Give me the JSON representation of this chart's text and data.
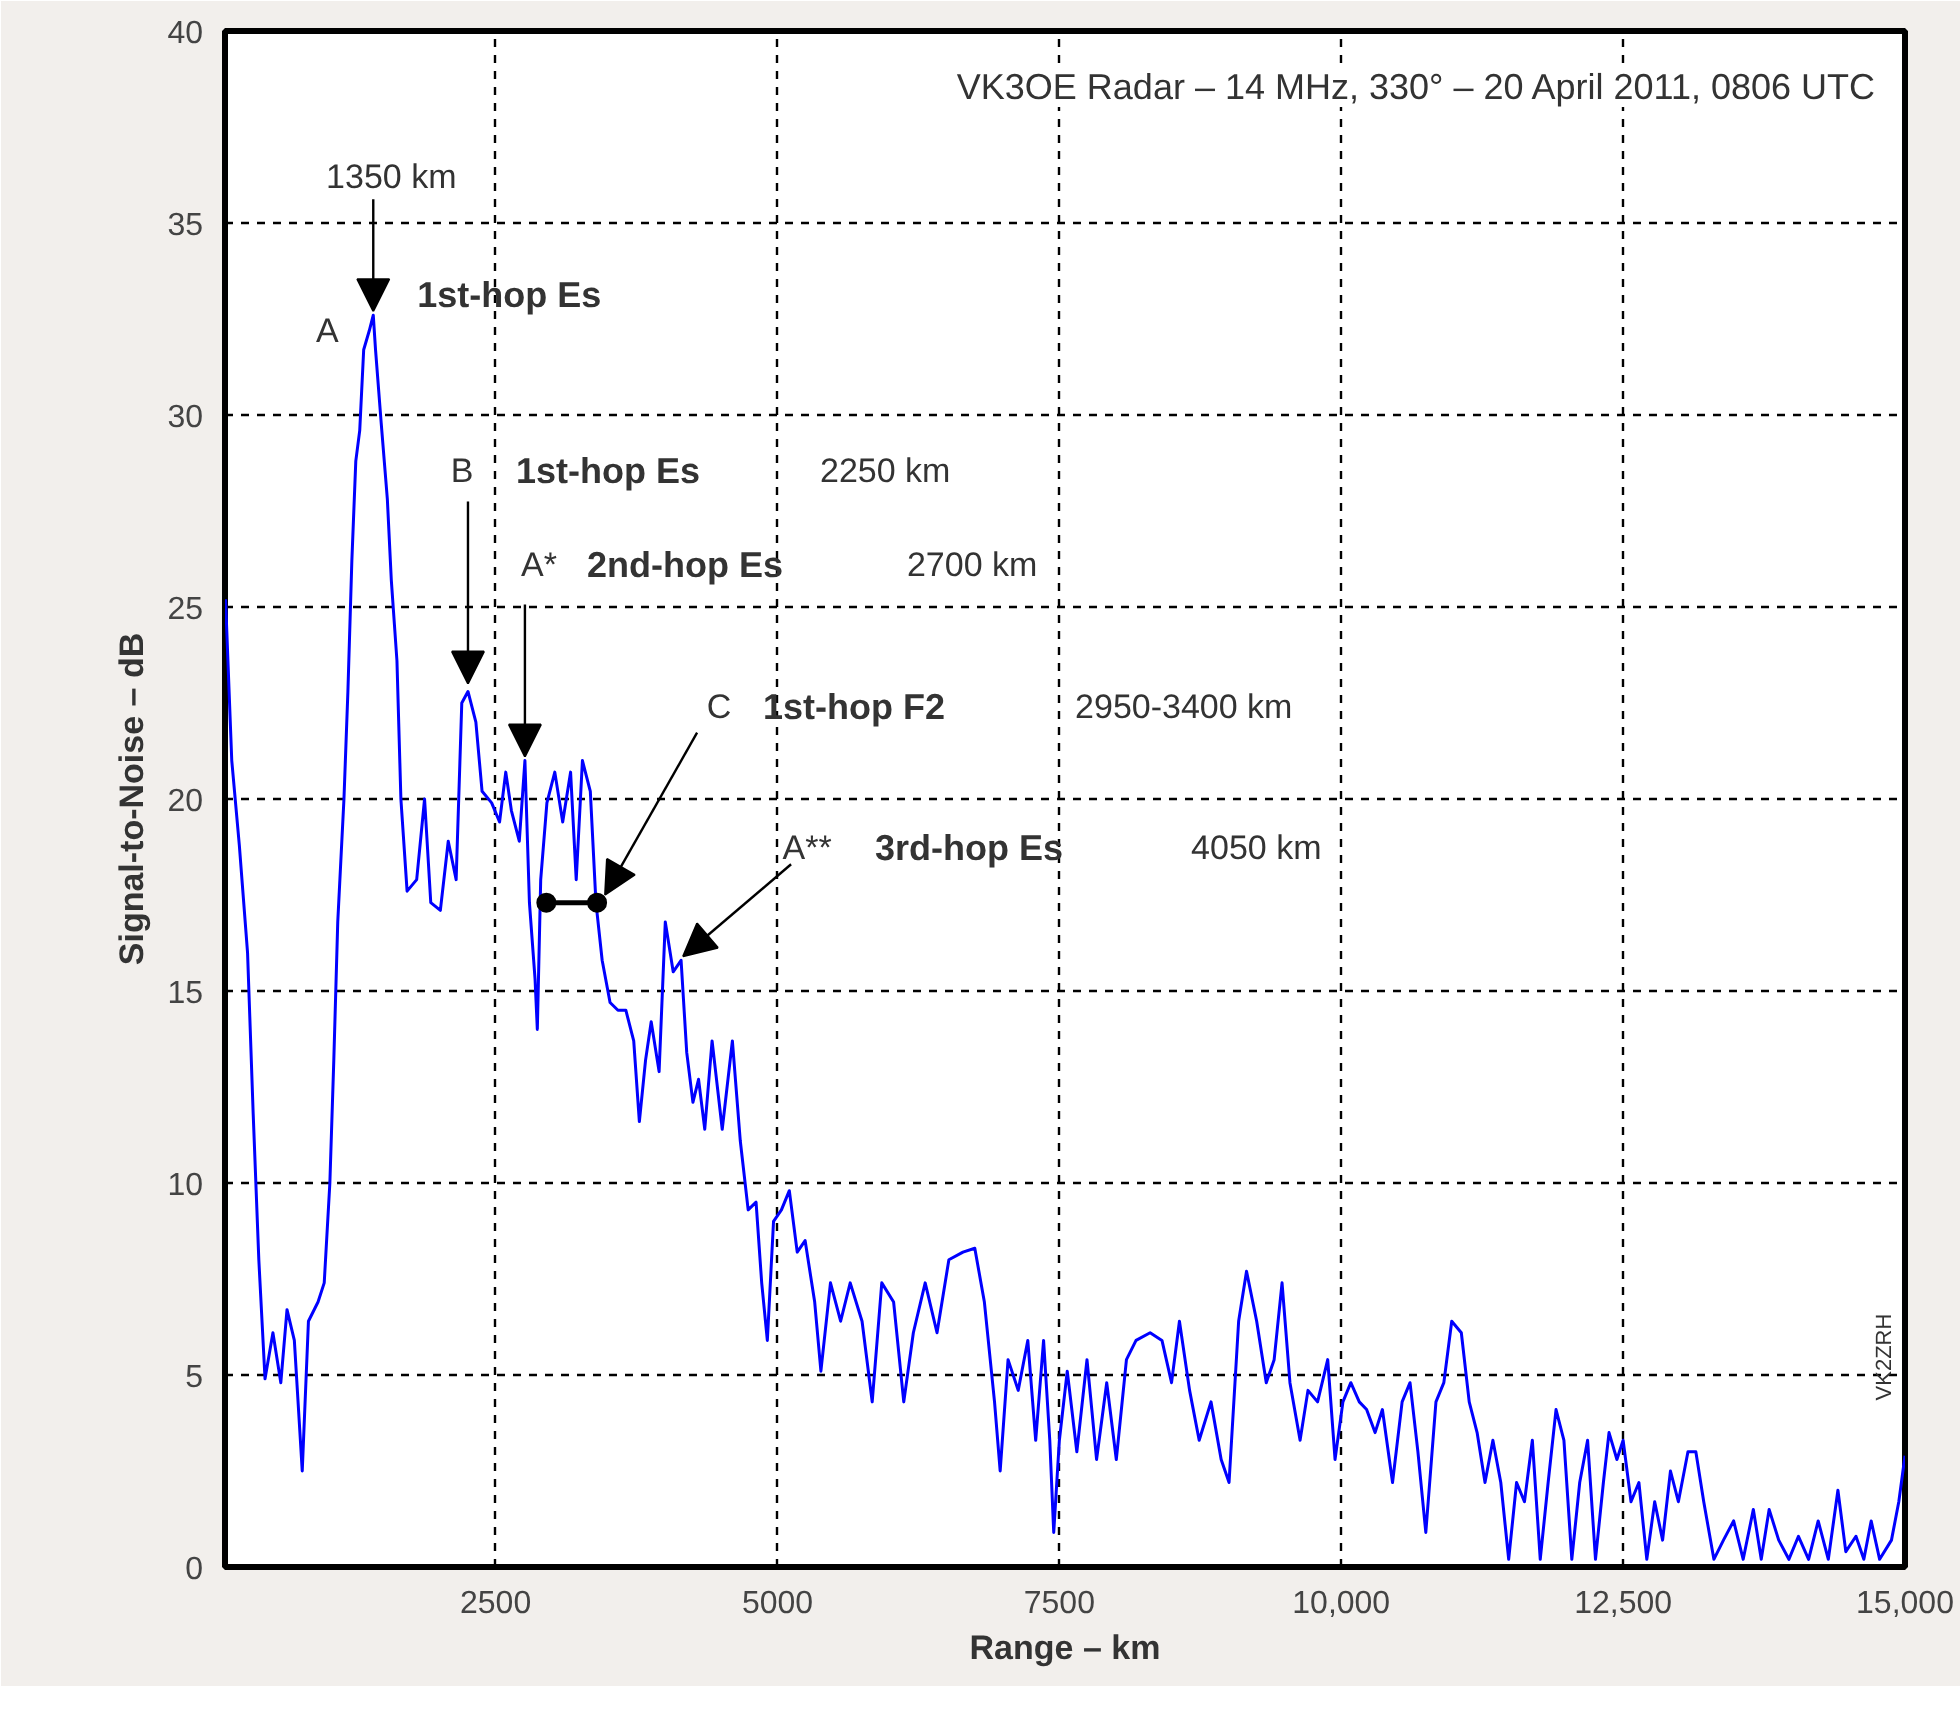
{
  "chart_data": {
    "type": "line",
    "title": "VK3OE Radar – 14 MHz, 330° – 20 April 2011, 0806 UTC",
    "xlabel": "Range – km",
    "ylabel": "Signal-to-Noise – dB",
    "xlim": [
      100,
      15000
    ],
    "ylim": [
      0,
      40
    ],
    "xticks": [
      2500,
      5000,
      7500,
      {
        "value": 10000,
        "label": "10,000"
      },
      {
        "value": 12500,
        "label": "12,500"
      },
      {
        "value": 15000,
        "label": "15,000"
      }
    ],
    "yticks": [
      0,
      5,
      10,
      15,
      20,
      25,
      30,
      35,
      40
    ],
    "grid": true,
    "line_style": "solid",
    "series": [
      {
        "color": "#0000ff",
        "x": [
          105,
          160,
          227,
          300,
          350,
          400,
          455,
          525,
          595,
          650,
          715,
          785,
          840,
          925,
          980,
          1030,
          1065,
          1100,
          1155,
          1190,
          1225,
          1260,
          1295,
          1330,
          1380,
          1415,
          1435,
          1485,
          1540,
          1575,
          1625,
          1660,
          1715,
          1800,
          1870,
          1925,
          2010,
          2080,
          2150,
          2200,
          2255,
          2325,
          2380,
          2465,
          2535,
          2590,
          2640,
          2710,
          2760,
          2800,
          2850,
          2870,
          2900,
          2955,
          3025,
          3095,
          3165,
          3215,
          3270,
          3340,
          3390,
          3445,
          3515,
          3585,
          3655,
          3725,
          3775,
          3830,
          3880,
          3950,
          4005,
          4075,
          4145,
          4195,
          4250,
          4300,
          4355,
          4420,
          4510,
          4600,
          4670,
          4740,
          4810,
          4860,
          4910,
          4965,
          5035,
          5105,
          5175,
          5245,
          5330,
          5385,
          5470,
          5560,
          5645,
          5750,
          5840,
          5925,
          6030,
          6120,
          6205,
          6310,
          6415,
          6520,
          6645,
          6750,
          6835,
          6925,
          6975,
          7045,
          7135,
          7220,
          7290,
          7360,
          7415,
          7450,
          7500,
          7570,
          7655,
          7745,
          7830,
          7920,
          8005,
          8095,
          8180,
          8305,
          8410,
          8495,
          8565,
          8655,
          8740,
          8845,
          8935,
          9005,
          9090,
          9160,
          9250,
          9335,
          9405,
          9475,
          9545,
          9635,
          9705,
          9790,
          9880,
          9945,
          10015,
          10085,
          10160,
          10225,
          10300,
          10365,
          10455,
          10540,
          10610,
          10680,
          10750,
          10840,
          10910,
          10980,
          11065,
          11135,
          11205,
          11275,
          11345,
          11415,
          11485,
          11555,
          11625,
          11695,
          11765,
          11835,
          11905,
          11975,
          12045,
          12115,
          12185,
          12255,
          12325,
          12375,
          12445,
          12500,
          12570,
          12640,
          12710,
          12780,
          12850,
          12920,
          12990,
          13075,
          13145,
          13215,
          13305,
          13390,
          13480,
          13565,
          13655,
          13725,
          13795,
          13880,
          13970,
          14055,
          14145,
          14230,
          14320,
          14405,
          14475,
          14565,
          14635,
          14700,
          14775,
          14880,
          14945,
          15000
        ],
        "values": [
          25.2,
          21,
          18.8,
          16,
          11.8,
          8,
          4.9,
          6.1,
          4.8,
          6.7,
          5.9,
          2.5,
          6.4,
          6.9,
          7.4,
          10,
          13.2,
          16.8,
          20,
          22.8,
          26.2,
          28.8,
          29.6,
          31.7,
          32.2,
          32.6,
          31.7,
          29.8,
          27.8,
          25.7,
          23.6,
          20,
          17.6,
          17.9,
          20,
          17.3,
          17.1,
          18.9,
          17.9,
          22.5,
          22.8,
          22,
          20.2,
          19.9,
          19.4,
          20.7,
          19.7,
          18.9,
          21,
          17.3,
          15.3,
          14,
          17.9,
          19.9,
          20.7,
          19.4,
          20.7,
          17.9,
          21,
          20.2,
          17.3,
          15.8,
          14.7,
          14.5,
          14.5,
          13.7,
          11.6,
          13.2,
          14.2,
          12.9,
          16.8,
          15.5,
          15.8,
          13.4,
          12.1,
          12.7,
          11.4,
          13.7,
          11.4,
          13.7,
          11.1,
          9.3,
          9.5,
          7.4,
          5.9,
          9,
          9.3,
          9.8,
          8.2,
          8.5,
          6.9,
          5.1,
          7.4,
          6.4,
          7.4,
          6.4,
          4.3,
          7.4,
          6.9,
          4.3,
          6.1,
          7.4,
          6.1,
          8,
          8.2,
          8.3,
          6.9,
          4.3,
          2.5,
          5.4,
          4.6,
          5.9,
          3.3,
          5.9,
          3.3,
          0.9,
          3.3,
          5.1,
          3,
          5.4,
          2.8,
          4.8,
          2.8,
          5.4,
          5.9,
          6.1,
          5.9,
          4.8,
          6.4,
          4.6,
          3.3,
          4.3,
          2.8,
          2.2,
          6.4,
          7.7,
          6.4,
          4.8,
          5.4,
          7.4,
          4.8,
          3.3,
          4.6,
          4.3,
          5.4,
          2.8,
          4.3,
          4.8,
          4.3,
          4.1,
          3.5,
          4.1,
          2.2,
          4.3,
          4.8,
          3,
          0.9,
          4.3,
          4.8,
          6.4,
          6.1,
          4.3,
          3.5,
          2.2,
          3.3,
          2.2,
          0.2,
          2.2,
          1.7,
          3.3,
          0.2,
          2.2,
          4.1,
          3.3,
          0.2,
          2.2,
          3.3,
          0.2,
          2.2,
          3.5,
          2.8,
          3.3,
          1.7,
          2.2,
          0.2,
          1.7,
          0.7,
          2.5,
          1.7,
          3,
          3,
          1.7,
          0.2,
          0.7,
          1.2,
          0.2,
          1.5,
          0.2,
          1.5,
          0.7,
          0.2,
          0.8,
          0.2,
          1.2,
          0.2,
          2,
          0.4,
          0.8,
          0.2,
          1.2,
          0.2,
          0.7,
          1.7,
          2.9
        ]
      },
      {
        "color": "#000000",
        "marker": "circle",
        "x": [
          2950,
          3400
        ],
        "values": [
          17.3,
          17.3
        ]
      }
    ],
    "annotations": [
      {
        "text": "1350 km",
        "x": 1415,
        "y": 32.6
      },
      {
        "text": "A",
        "x": 1415,
        "y": 32.6
      },
      {
        "text": "1st-hop Es",
        "x": 1415,
        "y": 32.6
      },
      {
        "text": "B",
        "x": 2255,
        "y": 22.8
      },
      "1st-hop Es",
      "2250 km",
      {
        "text": "A*",
        "x": 2760,
        "y": 21
      },
      "2nd-hop Es",
      "2700 km",
      {
        "text": "C",
        "x": 3400,
        "y": 17.3
      },
      "1st-hop F2",
      "2950-3400 km",
      {
        "text": "A**",
        "x": 4145,
        "y": 15.8
      },
      "3rd-hop Es",
      "4050 km",
      "VK2ZRH"
    ]
  }
}
